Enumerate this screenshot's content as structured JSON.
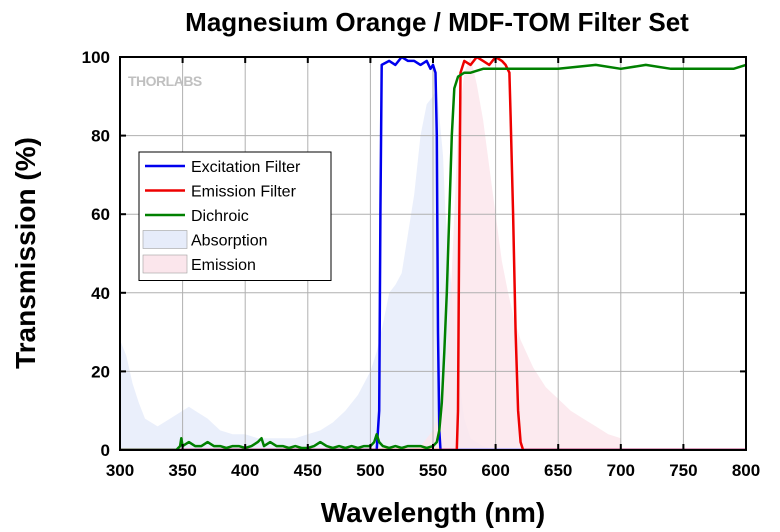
{
  "chart_data": {
    "type": "line",
    "title": "Magnesium Orange / MDF-TOM Filter Set",
    "xlabel": "Wavelength (nm)",
    "ylabel": "Transmission (%)",
    "xlim": [
      300,
      800
    ],
    "ylim": [
      0,
      100
    ],
    "xticks": [
      300,
      350,
      400,
      450,
      500,
      550,
      600,
      650,
      700,
      750,
      800
    ],
    "yticks": [
      0,
      20,
      40,
      60,
      80,
      100
    ],
    "grid": true,
    "legend_position": "upper-left",
    "logo": "THORLABS",
    "series": [
      {
        "name": "Excitation Filter",
        "kind": "line",
        "color": "#0000ee",
        "points": [
          [
            300,
            0
          ],
          [
            505,
            0
          ],
          [
            507,
            10
          ],
          [
            508,
            60
          ],
          [
            509,
            98
          ],
          [
            515,
            99
          ],
          [
            520,
            98
          ],
          [
            525,
            100
          ],
          [
            530,
            99
          ],
          [
            535,
            99
          ],
          [
            540,
            98
          ],
          [
            545,
            99
          ],
          [
            548,
            97
          ],
          [
            550,
            98
          ],
          [
            552,
            96
          ],
          [
            553,
            80
          ],
          [
            554,
            30
          ],
          [
            555,
            5
          ],
          [
            556,
            0
          ],
          [
            800,
            0
          ]
        ]
      },
      {
        "name": "Emission Filter",
        "kind": "line",
        "color": "#ee0000",
        "points": [
          [
            300,
            0
          ],
          [
            569,
            0
          ],
          [
            570,
            10
          ],
          [
            571,
            60
          ],
          [
            572,
            96
          ],
          [
            575,
            99
          ],
          [
            580,
            98
          ],
          [
            585,
            100
          ],
          [
            590,
            99
          ],
          [
            595,
            98
          ],
          [
            600,
            100
          ],
          [
            605,
            99
          ],
          [
            608,
            98
          ],
          [
            611,
            96
          ],
          [
            612,
            85
          ],
          [
            614,
            60
          ],
          [
            616,
            30
          ],
          [
            618,
            10
          ],
          [
            620,
            2
          ],
          [
            622,
            0
          ],
          [
            800,
            0
          ]
        ]
      },
      {
        "name": "Dichroic",
        "kind": "line",
        "color": "#008000",
        "points": [
          [
            300,
            0
          ],
          [
            345,
            0
          ],
          [
            348,
            1
          ],
          [
            349,
            3
          ],
          [
            350,
            1
          ],
          [
            355,
            2
          ],
          [
            360,
            1
          ],
          [
            365,
            1
          ],
          [
            370,
            2
          ],
          [
            375,
            1
          ],
          [
            380,
            1
          ],
          [
            385,
            0.5
          ],
          [
            390,
            1
          ],
          [
            395,
            1
          ],
          [
            400,
            0.5
          ],
          [
            405,
            1
          ],
          [
            410,
            2
          ],
          [
            413,
            3
          ],
          [
            415,
            1
          ],
          [
            420,
            2
          ],
          [
            425,
            1
          ],
          [
            430,
            1
          ],
          [
            435,
            0.5
          ],
          [
            440,
            1
          ],
          [
            445,
            0.5
          ],
          [
            450,
            0.5
          ],
          [
            455,
            1
          ],
          [
            460,
            2
          ],
          [
            465,
            1
          ],
          [
            470,
            0.5
          ],
          [
            475,
            1
          ],
          [
            480,
            0.5
          ],
          [
            485,
            1
          ],
          [
            490,
            0.5
          ],
          [
            495,
            1
          ],
          [
            500,
            1
          ],
          [
            503,
            2
          ],
          [
            505,
            4
          ],
          [
            507,
            2
          ],
          [
            510,
            1
          ],
          [
            515,
            0.5
          ],
          [
            520,
            1
          ],
          [
            525,
            0.5
          ],
          [
            530,
            1
          ],
          [
            535,
            1
          ],
          [
            540,
            1
          ],
          [
            545,
            0.5
          ],
          [
            550,
            1
          ],
          [
            553,
            2
          ],
          [
            555,
            5
          ],
          [
            557,
            12
          ],
          [
            559,
            25
          ],
          [
            561,
            40
          ],
          [
            563,
            60
          ],
          [
            565,
            80
          ],
          [
            567,
            92
          ],
          [
            570,
            95
          ],
          [
            575,
            96
          ],
          [
            580,
            96
          ],
          [
            590,
            97
          ],
          [
            600,
            97
          ],
          [
            620,
            97
          ],
          [
            650,
            97
          ],
          [
            680,
            98
          ],
          [
            700,
            97
          ],
          [
            720,
            98
          ],
          [
            740,
            97
          ],
          [
            760,
            97
          ],
          [
            780,
            97
          ],
          [
            790,
            97
          ],
          [
            800,
            98
          ]
        ]
      },
      {
        "name": "Absorption",
        "kind": "area",
        "color": "#e6ecfa",
        "points": [
          [
            300,
            28
          ],
          [
            305,
            24
          ],
          [
            310,
            17
          ],
          [
            315,
            12
          ],
          [
            320,
            8
          ],
          [
            330,
            6
          ],
          [
            340,
            8
          ],
          [
            350,
            10
          ],
          [
            355,
            11
          ],
          [
            360,
            10
          ],
          [
            370,
            8
          ],
          [
            380,
            5
          ],
          [
            390,
            4
          ],
          [
            400,
            4
          ],
          [
            410,
            3
          ],
          [
            420,
            3
          ],
          [
            430,
            3
          ],
          [
            440,
            3
          ],
          [
            450,
            4
          ],
          [
            460,
            5
          ],
          [
            470,
            7
          ],
          [
            480,
            10
          ],
          [
            490,
            14
          ],
          [
            500,
            20
          ],
          [
            505,
            25
          ],
          [
            510,
            32
          ],
          [
            515,
            40
          ],
          [
            520,
            42
          ],
          [
            525,
            45
          ],
          [
            530,
            55
          ],
          [
            535,
            65
          ],
          [
            540,
            80
          ],
          [
            545,
            88
          ],
          [
            550,
            90
          ],
          [
            553,
            92
          ],
          [
            555,
            85
          ],
          [
            558,
            75
          ],
          [
            560,
            60
          ],
          [
            565,
            40
          ],
          [
            570,
            20
          ],
          [
            575,
            8
          ],
          [
            580,
            3
          ],
          [
            590,
            1
          ],
          [
            600,
            0
          ],
          [
            800,
            0
          ]
        ]
      },
      {
        "name": "Emission",
        "kind": "area",
        "color": "#fbe6ec",
        "points": [
          [
            300,
            0
          ],
          [
            530,
            0
          ],
          [
            540,
            1
          ],
          [
            550,
            5
          ],
          [
            555,
            10
          ],
          [
            560,
            20
          ],
          [
            565,
            45
          ],
          [
            570,
            82
          ],
          [
            575,
            96
          ],
          [
            580,
            100
          ],
          [
            585,
            93
          ],
          [
            590,
            84
          ],
          [
            595,
            72
          ],
          [
            600,
            60
          ],
          [
            605,
            48
          ],
          [
            610,
            40
          ],
          [
            615,
            33
          ],
          [
            620,
            28
          ],
          [
            630,
            21
          ],
          [
            640,
            16
          ],
          [
            650,
            13
          ],
          [
            660,
            10
          ],
          [
            670,
            8
          ],
          [
            680,
            6
          ],
          [
            690,
            4
          ],
          [
            700,
            3
          ],
          [
            701,
            0
          ],
          [
            800,
            0
          ]
        ]
      }
    ]
  }
}
